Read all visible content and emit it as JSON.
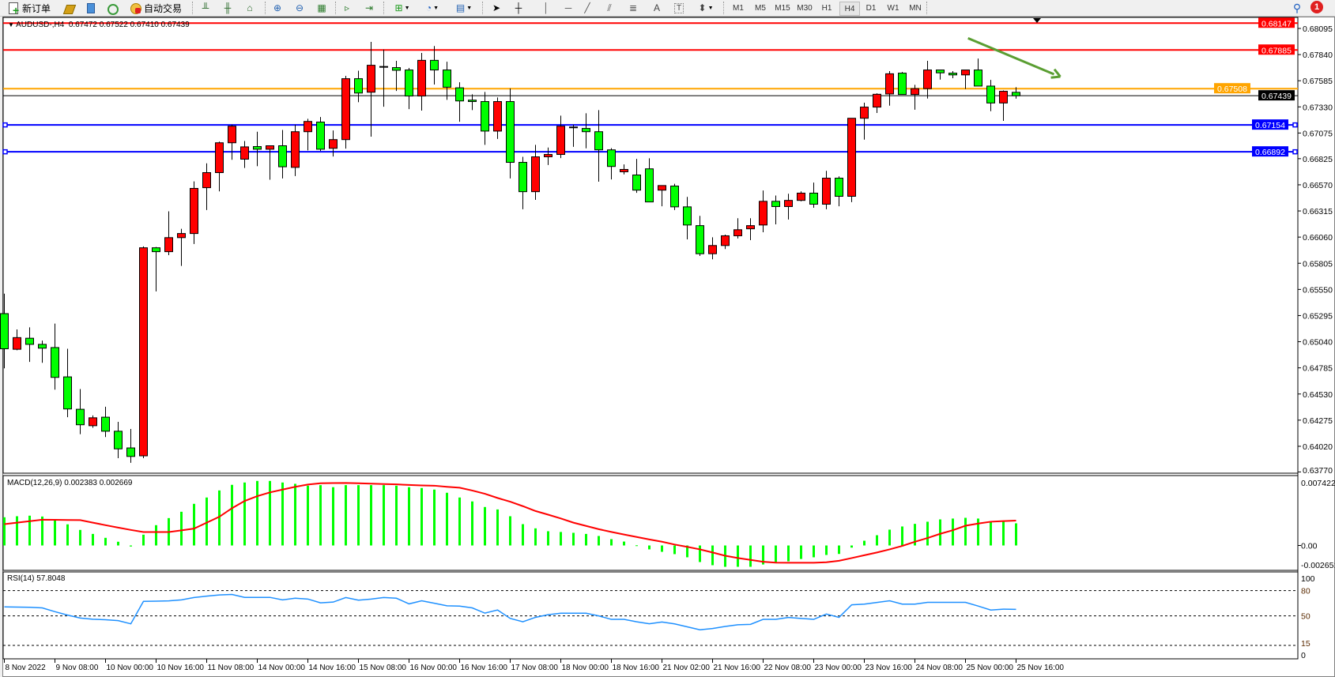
{
  "toolbar": {
    "new_order_label": "新订单",
    "auto_trading_label": "自动交易",
    "timeframes": [
      "M1",
      "M5",
      "M15",
      "M30",
      "H1",
      "H4",
      "D1",
      "W1",
      "MN"
    ],
    "selected_timeframe": "H4",
    "notification_count": "1",
    "icons": [
      "new-order-icon",
      "history-center-icon",
      "global-variables-icon",
      "signals-icon",
      "auto-trading-icon",
      "bar-chart-icon",
      "candlestick-icon",
      "line-chart-icon",
      "zoom-in-icon",
      "zoom-out-icon",
      "tile-windows-icon",
      "chart-shift-icon",
      "autoscroll-icon",
      "indicators-icon",
      "periods-icon",
      "templates-icon",
      "cursor-icon",
      "crosshair-icon",
      "vertical-line-icon",
      "horizontal-line-icon",
      "trendline-icon",
      "equidistant-channel-icon",
      "fibonacci-icon",
      "text-icon",
      "text-label-icon",
      "arrows-icon",
      "search-icon",
      "notification-icon"
    ]
  },
  "chart": {
    "symbol_header": "AUDUSD-,H4  0.67472 0.67522 0.67410 0.67439",
    "macd_header": "MACD(12,26,9) 0.002383 0.002669",
    "rsi_header": "RSI(14) 57.8048",
    "colors": {
      "bull": "#ff0000",
      "bear": "#00ff00",
      "macd_hist": "#00ff00",
      "macd_signal": "#ff0000",
      "rsi": "#1e90ff",
      "trend_arrow": "#5a9e32"
    },
    "price_ticks": [
      "0.68095",
      "0.67840",
      "0.67585",
      "0.67330",
      "0.67075",
      "0.66825",
      "0.66570",
      "0.66315",
      "0.66060",
      "0.65805",
      "0.65550",
      "0.65295",
      "0.65040",
      "0.64785",
      "0.64530",
      "0.64275",
      "0.64020",
      "0.63770"
    ],
    "horizontal_lines": [
      {
        "price": "0.68147",
        "color": "#ff0000"
      },
      {
        "price": "0.67885",
        "color": "#ff0000"
      },
      {
        "price": "0.67508",
        "color": "#ffa500"
      },
      {
        "price": "0.67439",
        "color": "#000000"
      },
      {
        "price": "0.67154",
        "color": "#0000ff"
      },
      {
        "price": "0.66892",
        "color": "#0000ff"
      }
    ],
    "macd_ticks": [
      "0.007422",
      "0.00",
      "-0.002651"
    ],
    "rsi_ticks": [
      "100",
      "80",
      "50",
      "15",
      "0"
    ],
    "time_labels": [
      "8 Nov 2022",
      "9 Nov 08:00",
      "10 Nov 00:00",
      "10 Nov 16:00",
      "11 Nov 08:00",
      "14 Nov 00:00",
      "14 Nov 16:00",
      "15 Nov 08:00",
      "16 Nov 00:00",
      "16 Nov 16:00",
      "17 Nov 08:00",
      "18 Nov 00:00",
      "18 Nov 16:00",
      "21 Nov 02:00",
      "21 Nov 16:00",
      "22 Nov 08:00",
      "23 Nov 00:00",
      "23 Nov 16:00",
      "24 Nov 08:00",
      "25 Nov 00:00",
      "25 Nov 16:00"
    ]
  },
  "chart_data": {
    "type": "candlestick",
    "symbol": "AUDUSD-",
    "timeframe": "H4",
    "ylim": [
      0.6377,
      0.6815
    ],
    "ohlc": [
      [
        0.65314,
        0.65508,
        0.6478,
        0.64971
      ],
      [
        0.64966,
        0.6516,
        0.64957,
        0.6508
      ],
      [
        0.65074,
        0.6518,
        0.64843,
        0.65014
      ],
      [
        0.65014,
        0.65051,
        0.64834,
        0.64977
      ],
      [
        0.64983,
        0.65217,
        0.64572,
        0.64692
      ],
      [
        0.64697,
        0.64971,
        0.64304,
        0.64384
      ],
      [
        0.64381,
        0.64578,
        0.64138,
        0.6423
      ],
      [
        0.64221,
        0.64321,
        0.64201,
        0.64298
      ],
      [
        0.64304,
        0.64406,
        0.6411,
        0.64167
      ],
      [
        0.64167,
        0.64258,
        0.63904,
        0.63995
      ],
      [
        0.64004,
        0.64189,
        0.63859,
        0.63921
      ],
      [
        0.63927,
        0.6597,
        0.63904,
        0.65956
      ],
      [
        0.65956,
        0.65964,
        0.65531,
        0.65918
      ],
      [
        0.65918,
        0.66312,
        0.65884,
        0.66055
      ],
      [
        0.66055,
        0.66141,
        0.65779,
        0.66095
      ],
      [
        0.66095,
        0.66603,
        0.65993,
        0.66535
      ],
      [
        0.66542,
        0.6678,
        0.66324,
        0.66689
      ],
      [
        0.66689,
        0.66991,
        0.66506,
        0.6698
      ],
      [
        0.6698,
        0.67157,
        0.66814,
        0.67142
      ],
      [
        0.6682,
        0.66997,
        0.66734,
        0.6694
      ],
      [
        0.66943,
        0.67088,
        0.66752,
        0.66917
      ],
      [
        0.66917,
        0.66951,
        0.6662,
        0.66951
      ],
      [
        0.66951,
        0.67105,
        0.66632,
        0.66746
      ],
      [
        0.6674,
        0.67157,
        0.66655,
        0.67088
      ],
      [
        0.67088,
        0.67214,
        0.66906,
        0.67188
      ],
      [
        0.67182,
        0.67231,
        0.669,
        0.66917
      ],
      [
        0.66926,
        0.671,
        0.66846,
        0.67011
      ],
      [
        0.67011,
        0.67633,
        0.66923,
        0.67605
      ],
      [
        0.67605,
        0.67683,
        0.67376,
        0.67465
      ],
      [
        0.67473,
        0.67964,
        0.6704,
        0.67736
      ],
      [
        0.67724,
        0.6789,
        0.67331,
        0.67724
      ],
      [
        0.67713,
        0.67779,
        0.67485,
        0.67687
      ],
      [
        0.6769,
        0.6771,
        0.67308,
        0.67436
      ],
      [
        0.67436,
        0.67856,
        0.67294,
        0.67784
      ],
      [
        0.67784,
        0.67924,
        0.67548,
        0.6769
      ],
      [
        0.6769,
        0.6777,
        0.67399,
        0.67522
      ],
      [
        0.67516,
        0.6757,
        0.67185,
        0.67388
      ],
      [
        0.67396,
        0.67453,
        0.67299,
        0.67382
      ],
      [
        0.67382,
        0.67476,
        0.6696,
        0.67094
      ],
      [
        0.67094,
        0.67422,
        0.67017,
        0.67382
      ],
      [
        0.67382,
        0.6751,
        0.66632,
        0.66789
      ],
      [
        0.66789,
        0.66843,
        0.66332,
        0.66503
      ],
      [
        0.66503,
        0.6696,
        0.66423,
        0.66843
      ],
      [
        0.66843,
        0.66934,
        0.66763,
        0.66866
      ],
      [
        0.66866,
        0.67245,
        0.66831,
        0.67142
      ],
      [
        0.67134,
        0.67157,
        0.6694,
        0.67134
      ],
      [
        0.6712,
        0.67268,
        0.66926,
        0.67088
      ],
      [
        0.67088,
        0.67299,
        0.666,
        0.66911
      ],
      [
        0.66911,
        0.66928,
        0.66623,
        0.66749
      ],
      [
        0.66697,
        0.66769,
        0.66672,
        0.6672
      ],
      [
        0.66666,
        0.66823,
        0.66492,
        0.66518
      ],
      [
        0.66726,
        0.66829,
        0.66403,
        0.66403
      ],
      [
        0.66518,
        0.66563,
        0.66361,
        0.66563
      ],
      [
        0.66558,
        0.6658,
        0.66324,
        0.66355
      ],
      [
        0.66355,
        0.66452,
        0.66038,
        0.66178
      ],
      [
        0.66172,
        0.66267,
        0.65876,
        0.65898
      ],
      [
        0.65898,
        0.66058,
        0.65844,
        0.65978
      ],
      [
        0.65978,
        0.66084,
        0.65944,
        0.66073
      ],
      [
        0.66073,
        0.66244,
        0.66047,
        0.66132
      ],
      [
        0.66141,
        0.66244,
        0.6603,
        0.66172
      ],
      [
        0.66178,
        0.66515,
        0.66107,
        0.66409
      ],
      [
        0.66409,
        0.66466,
        0.66184,
        0.66358
      ],
      [
        0.66358,
        0.66483,
        0.66232,
        0.66418
      ],
      [
        0.66418,
        0.66506,
        0.66409,
        0.66489
      ],
      [
        0.66489,
        0.66592,
        0.66346,
        0.66381
      ],
      [
        0.66381,
        0.66706,
        0.66332,
        0.66635
      ],
      [
        0.66635,
        0.66652,
        0.66361,
        0.66458
      ],
      [
        0.66458,
        0.67219,
        0.66401,
        0.67219
      ],
      [
        0.67219,
        0.67371,
        0.67011,
        0.67328
      ],
      [
        0.67328,
        0.67462,
        0.67271,
        0.67453
      ],
      [
        0.67456,
        0.67679,
        0.67342,
        0.67653
      ],
      [
        0.67659,
        0.6767,
        0.67451,
        0.67451
      ],
      [
        0.67451,
        0.67545,
        0.67302,
        0.67508
      ],
      [
        0.67508,
        0.67779,
        0.67411,
        0.6769
      ],
      [
        0.6769,
        0.6769,
        0.67596,
        0.67662
      ],
      [
        0.67659,
        0.67679,
        0.6761,
        0.67642
      ],
      [
        0.67642,
        0.6769,
        0.67505,
        0.6769
      ],
      [
        0.6769,
        0.67801,
        0.67533,
        0.67533
      ],
      [
        0.67533,
        0.67593,
        0.67288,
        0.67368
      ],
      [
        0.67368,
        0.6749,
        0.67194,
        0.67482
      ],
      [
        0.67472,
        0.67522,
        0.6741,
        0.67439
      ]
    ],
    "macd": {
      "ylim": [
        -0.002651,
        0.007422
      ],
      "histogram": [
        0.00303,
        0.00314,
        0.0032,
        0.00311,
        0.00272,
        0.00227,
        0.00167,
        0.00124,
        0.00082,
        0.0004,
        -0.00011,
        0.00116,
        0.00218,
        0.00294,
        0.00362,
        0.00447,
        0.00515,
        0.00591,
        0.00651,
        0.00676,
        0.00693,
        0.00693,
        0.00676,
        0.00662,
        0.00642,
        0.00648,
        0.00626,
        0.00648,
        0.00648,
        0.00648,
        0.00648,
        0.00642,
        0.00626,
        0.00617,
        0.006,
        0.00566,
        0.00515,
        0.00473,
        0.00413,
        0.00387,
        0.00314,
        0.00229,
        0.00184,
        0.00153,
        0.00145,
        0.00136,
        0.00124,
        0.00102,
        0.00068,
        0.00042,
        2e-05,
        -0.00042,
        -0.00068,
        -0.00093,
        -0.00127,
        -0.00178,
        -0.00212,
        -0.00229,
        -0.00229,
        -0.00229,
        -0.00204,
        -0.00178,
        -0.0017,
        -0.00145,
        -0.00127,
        -0.00102,
        -0.00091,
        -0.00023,
        0.00051,
        0.0011,
        0.0017,
        0.00204,
        0.00232,
        0.00255,
        0.0028,
        0.00289,
        0.00297,
        0.00289,
        0.00255,
        0.00255,
        0.00238
      ],
      "signal": [
        0.00229,
        0.00245,
        0.00261,
        0.00277,
        0.00276,
        0.00274,
        0.00272,
        0.00245,
        0.00218,
        0.00192,
        0.00167,
        0.00144,
        0.00144,
        0.00144,
        0.00162,
        0.00181,
        0.00245,
        0.00308,
        0.004,
        0.00478,
        0.0053,
        0.0057,
        0.006,
        0.0063,
        0.00654,
        0.00668,
        0.0067,
        0.00671,
        0.00668,
        0.00664,
        0.0066,
        0.00656,
        0.0065,
        0.00645,
        0.00642,
        0.0063,
        0.0062,
        0.0059,
        0.00555,
        0.0051,
        0.0047,
        0.00422,
        0.0037,
        0.00331,
        0.0029,
        0.00245,
        0.0021,
        0.00175,
        0.00145,
        0.00118,
        0.00091,
        0.00065,
        0.0004,
        0.0001,
        -0.00015,
        -0.00042,
        -0.00075,
        -0.0011,
        -0.00135,
        -0.00155,
        -0.00175,
        -0.00184,
        -0.00186,
        -0.00186,
        -0.00186,
        -0.0018,
        -0.00164,
        -0.00135,
        -0.00105,
        -0.00075,
        -0.00042,
        -5e-05,
        0.0004,
        0.0008,
        0.00125,
        0.00164,
        0.00212,
        0.00235,
        0.00255,
        0.00262,
        0.00267
      ]
    },
    "rsi": {
      "ylim": [
        0,
        100
      ],
      "levels": [
        80,
        50,
        15
      ],
      "values": [
        60.7,
        60.5,
        60.2,
        59.5,
        55,
        51,
        47.5,
        46,
        45.5,
        44.4,
        40.6,
        67.3,
        67.5,
        67.9,
        69,
        71.8,
        73.5,
        74.9,
        75.5,
        72,
        72,
        72,
        69,
        71,
        70,
        65.5,
        66.4,
        71.8,
        68.7,
        70,
        71.8,
        71,
        64.3,
        67.9,
        65,
        62,
        61.6,
        59.5,
        53.3,
        57,
        47,
        43,
        48.3,
        51.4,
        53.2,
        53.2,
        53.2,
        50,
        45.9,
        45.9,
        43,
        40.7,
        42.8,
        40.5,
        37,
        33.5,
        35,
        37.5,
        39.5,
        40,
        45.9,
        45.9,
        48.2,
        47,
        45.9,
        52.2,
        48.2,
        63.2,
        64,
        66,
        68,
        64,
        64,
        66.1,
        66.1,
        66.1,
        66.1,
        61.7,
        57,
        58,
        57.8
      ]
    },
    "trend_arrow": {
      "from": {
        "bar": 76.2,
        "price": 0.68
      },
      "to": {
        "bar": 83.5,
        "price": 0.67625
      }
    }
  }
}
